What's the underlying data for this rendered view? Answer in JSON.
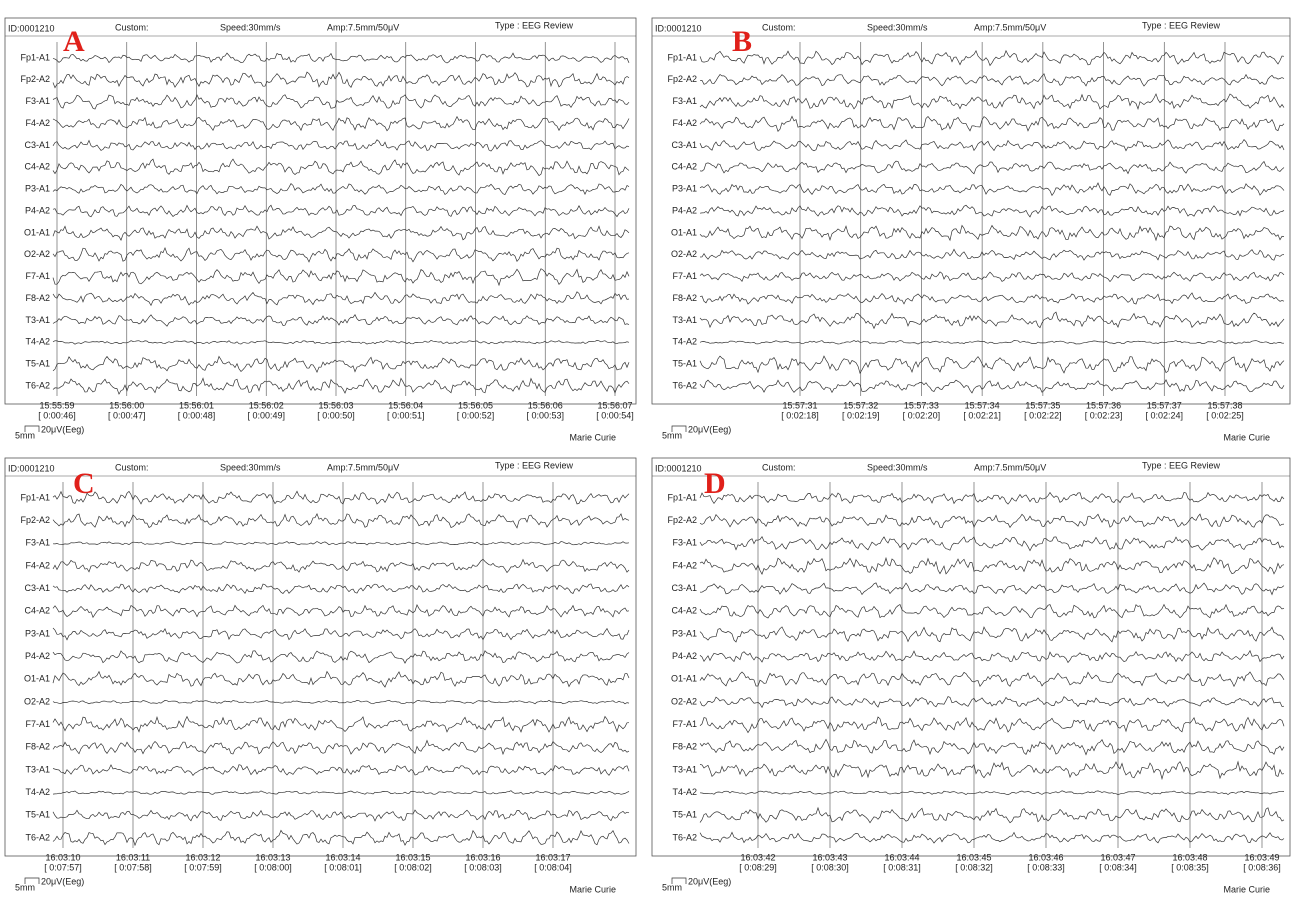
{
  "header": {
    "id": "ID:0001210",
    "custom": "Custom:",
    "speed": "Speed:30mm/s",
    "amp": "Amp:7.5mm/50μV",
    "type": "Type : EEG Review"
  },
  "channels": [
    "Fp1-A1",
    "Fp2-A2",
    "F3-A1",
    "F4-A2",
    "C3-A1",
    "C4-A2",
    "P3-A1",
    "P4-A2",
    "O1-A1",
    "O2-A2",
    "F7-A1",
    "F8-A2",
    "T3-A1",
    "T4-A2",
    "T5-A1",
    "T6-A2"
  ],
  "footer": {
    "scale_mm": "5mm",
    "scale_uv": "20μV(Eeg)",
    "name": "Marie Curie"
  },
  "panels": [
    {
      "label": "A",
      "times": [
        {
          "time": "15:55:59",
          "elapsed": "[ 0:00:46]"
        },
        {
          "time": "15:56:00",
          "elapsed": "[ 0:00:47]"
        },
        {
          "time": "15:56:01",
          "elapsed": "[ 0:00:48]"
        },
        {
          "time": "15:56:02",
          "elapsed": "[ 0:00:49]"
        },
        {
          "time": "15:56:03",
          "elapsed": "[ 0:00:50]"
        },
        {
          "time": "15:56:04",
          "elapsed": "[ 0:00:51]"
        },
        {
          "time": "15:56:05",
          "elapsed": "[ 0:00:52]"
        },
        {
          "time": "15:56:06",
          "elapsed": "[ 0:00:53]"
        },
        {
          "time": "15:56:07",
          "elapsed": "[ 0:00:54]"
        }
      ]
    },
    {
      "label": "B",
      "times": [
        {
          "time": "15:57:31",
          "elapsed": "[ 0:02:18]"
        },
        {
          "time": "15:57:32",
          "elapsed": "[ 0:02:19]"
        },
        {
          "time": "15:57:33",
          "elapsed": "[ 0:02:20]"
        },
        {
          "time": "15:57:34",
          "elapsed": "[ 0:02:21]"
        },
        {
          "time": "15:57:35",
          "elapsed": "[ 0:02:22]"
        },
        {
          "time": "15:57:36",
          "elapsed": "[ 0:02:23]"
        },
        {
          "time": "15:57:37",
          "elapsed": "[ 0:02:24]"
        },
        {
          "time": "15:57:38",
          "elapsed": "[ 0:02:25]"
        }
      ]
    },
    {
      "label": "C",
      "times": [
        {
          "time": "16:03:10",
          "elapsed": "[ 0:07:57]"
        },
        {
          "time": "16:03:11",
          "elapsed": "[ 0:07:58]"
        },
        {
          "time": "16:03:12",
          "elapsed": "[ 0:07:59]"
        },
        {
          "time": "16:03:13",
          "elapsed": "[ 0:08:00]"
        },
        {
          "time": "16:03:14",
          "elapsed": "[ 0:08:01]"
        },
        {
          "time": "16:03:15",
          "elapsed": "[ 0:08:02]"
        },
        {
          "time": "16:03:16",
          "elapsed": "[ 0:08:03]"
        },
        {
          "time": "16:03:17",
          "elapsed": "[ 0:08:04]"
        }
      ]
    },
    {
      "label": "D",
      "times": [
        {
          "time": "16:03:42",
          "elapsed": "[ 0:08:29]"
        },
        {
          "time": "16:03:43",
          "elapsed": "[ 0:08:30]"
        },
        {
          "time": "16:03:44",
          "elapsed": "[ 0:08:31]"
        },
        {
          "time": "16:03:45",
          "elapsed": "[ 0:08:32]"
        },
        {
          "time": "16:03:46",
          "elapsed": "[ 0:08:33]"
        },
        {
          "time": "16:03:47",
          "elapsed": "[ 0:08:34]"
        },
        {
          "time": "16:03:48",
          "elapsed": "[ 0:08:35]"
        },
        {
          "time": "16:03:49",
          "elapsed": "[ 0:08:36]"
        }
      ]
    }
  ]
}
